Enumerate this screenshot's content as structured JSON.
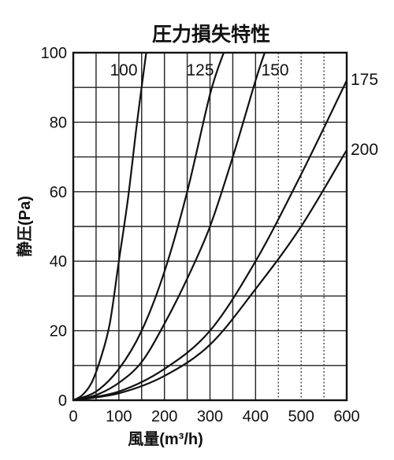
{
  "chart_data": {
    "type": "line",
    "title": "圧力損失特性",
    "xlabel": "風量(m³/h)",
    "ylabel": "静圧(Pa)",
    "xlim": [
      0,
      600
    ],
    "ylim": [
      0,
      100
    ],
    "x_ticks": [
      "0",
      "100",
      "200",
      "300",
      "400",
      "500",
      "600"
    ],
    "y_ticks": [
      "0",
      "20",
      "40",
      "60",
      "80",
      "100"
    ],
    "x_ticks_values": [
      0,
      100,
      200,
      300,
      400,
      500,
      600
    ],
    "y_ticks_values": [
      0,
      20,
      40,
      60,
      80,
      100
    ],
    "x_grid_values": [
      50,
      100,
      150,
      200,
      250,
      300,
      350,
      400,
      450,
      500,
      550
    ],
    "x_grid_dashed_values": [
      450,
      500,
      550
    ],
    "y_grid_values": [
      10,
      20,
      30,
      40,
      50,
      60,
      70,
      80,
      90
    ],
    "grid": true,
    "series": [
      {
        "name": "100",
        "x": [
          0,
          20,
          40,
          60,
          80,
          100,
          120,
          140,
          160
        ],
        "y": [
          0,
          1.5,
          5,
          12,
          22,
          40,
          58,
          80,
          100
        ]
      },
      {
        "name": "125",
        "x": [
          0,
          50,
          100,
          150,
          200,
          250,
          300,
          330
        ],
        "y": [
          0,
          2.5,
          9,
          20,
          37,
          60,
          88,
          100
        ]
      },
      {
        "name": "150",
        "x": [
          0,
          50,
          100,
          150,
          200,
          250,
          300,
          350,
          400,
          420
        ],
        "y": [
          0,
          1.5,
          5,
          11,
          22,
          35,
          50,
          70,
          92,
          100
        ]
      },
      {
        "name": "175",
        "x": [
          0,
          100,
          200,
          300,
          400,
          500,
          600
        ],
        "y": [
          0,
          2.5,
          9,
          20,
          40,
          65,
          92
        ]
      },
      {
        "name": "200",
        "x": [
          0,
          100,
          200,
          300,
          400,
          500,
          600
        ],
        "y": [
          0,
          2,
          7,
          16,
          32,
          50,
          72
        ]
      }
    ]
  }
}
